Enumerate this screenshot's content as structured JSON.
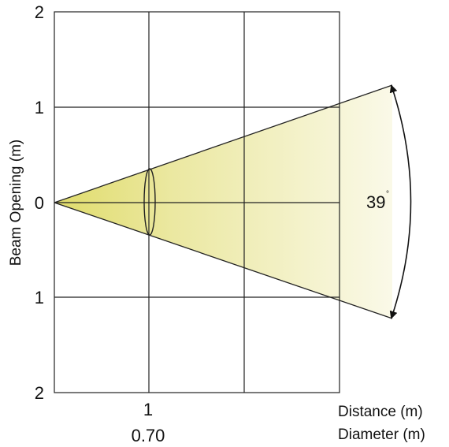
{
  "y_axis": {
    "title": "Beam Opening (m)",
    "tick_labels": [
      "2",
      "1",
      "0",
      "1",
      "2"
    ]
  },
  "x_axis": {
    "distance_tick": "1",
    "diameter_value": "0.70",
    "distance_title": "Distance (m)",
    "diameter_title": "Diameter (m)"
  },
  "beam": {
    "angle_value": "39",
    "angle_degree_symbol": "°",
    "color_near": "#e0dc6b",
    "color_far": "#faf9e8"
  },
  "colors": {
    "grid": "#222222",
    "text": "#111111"
  }
}
